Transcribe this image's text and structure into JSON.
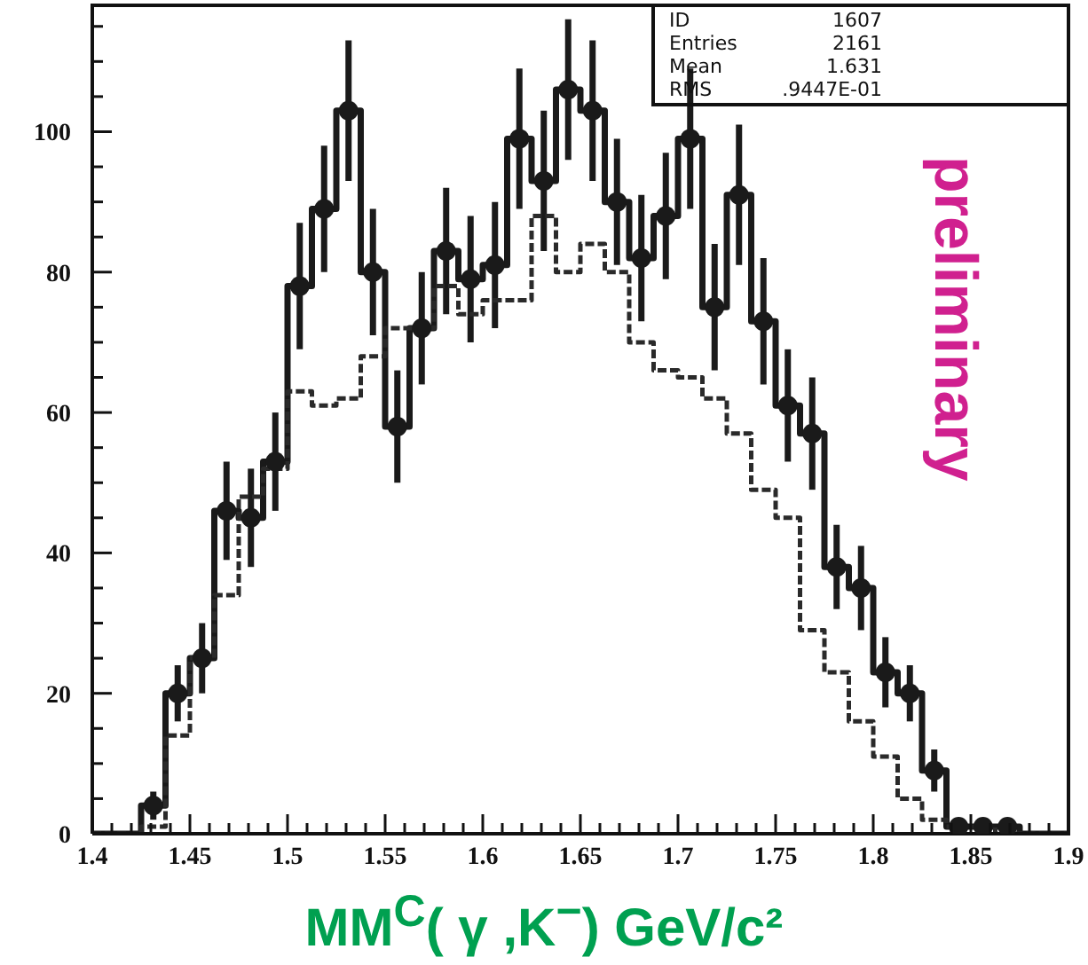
{
  "chart_data": {
    "type": "histogram",
    "bins": [
      1.4,
      1.4125,
      1.425,
      1.4375,
      1.45,
      1.4625,
      1.475,
      1.4875,
      1.5,
      1.5125,
      1.525,
      1.5375,
      1.55,
      1.5625,
      1.575,
      1.5875,
      1.6,
      1.6125,
      1.625,
      1.6375,
      1.65,
      1.6625,
      1.675,
      1.6875,
      1.7,
      1.7125,
      1.725,
      1.7375,
      1.75,
      1.7625,
      1.775,
      1.7875,
      1.8,
      1.8125,
      1.825,
      1.8375,
      1.85,
      1.8625,
      1.875,
      1.8875,
      1.9
    ],
    "series": [
      {
        "color": "#1a1a1a",
        "line_style": "solid",
        "values": [
          0,
          0,
          4,
          20,
          25,
          46,
          45,
          53,
          78,
          89,
          103,
          80,
          58,
          72,
          83,
          79,
          81,
          99,
          93,
          106,
          103,
          90,
          82,
          88,
          99,
          75,
          91,
          73,
          61,
          57,
          38,
          35,
          23,
          20,
          9,
          1,
          1,
          1,
          0,
          0
        ]
      },
      {
        "type": "scatter",
        "color": "#1a1a1a",
        "marker": "circle",
        "x": [
          1.43125,
          1.44375,
          1.45625,
          1.46875,
          1.48125,
          1.49375,
          1.50625,
          1.51875,
          1.53125,
          1.54375,
          1.55625,
          1.56875,
          1.58125,
          1.59375,
          1.60625,
          1.61875,
          1.63125,
          1.64375,
          1.65625,
          1.66875,
          1.68125,
          1.69375,
          1.70625,
          1.71875,
          1.73125,
          1.74375,
          1.75625,
          1.76875,
          1.78125,
          1.79375,
          1.80625,
          1.81875,
          1.83125,
          1.84375,
          1.85625,
          1.86875
        ],
        "values": [
          4,
          20,
          25,
          46,
          45,
          53,
          78,
          89,
          103,
          80,
          58,
          72,
          83,
          79,
          81,
          99,
          93,
          106,
          103,
          90,
          82,
          88,
          99,
          75,
          91,
          73,
          61,
          57,
          38,
          35,
          23,
          20,
          9,
          1,
          1,
          1
        ],
        "errors": [
          2,
          4,
          5,
          7,
          7,
          7,
          9,
          9,
          10,
          9,
          8,
          8,
          9,
          9,
          9,
          10,
          10,
          10,
          10,
          9,
          9,
          9,
          10,
          9,
          10,
          9,
          8,
          8,
          6,
          6,
          5,
          4,
          3,
          1,
          1,
          1
        ]
      },
      {
        "color": "#2a2a2a",
        "line_style": "dashed",
        "values": [
          0,
          0,
          1,
          14,
          25,
          34,
          48,
          52,
          63,
          61,
          62,
          68,
          72,
          72,
          78,
          74,
          76,
          76,
          88,
          80,
          84,
          80,
          70,
          66,
          65,
          62,
          57,
          49,
          45,
          29,
          23,
          16,
          11,
          5,
          2,
          1,
          1,
          0,
          0,
          0
        ]
      }
    ],
    "xlim": [
      1.4,
      1.9
    ],
    "ylim": [
      0,
      118
    ],
    "xticks": [
      1.4,
      {
        "value": 1.41,
        "label": null
      },
      {
        "value": 1.42,
        "label": null
      },
      {
        "value": 1.43,
        "label": null
      },
      {
        "value": 1.44,
        "label": null
      },
      1.45,
      {
        "value": 1.46,
        "label": null
      },
      {
        "value": 1.47,
        "label": null
      },
      {
        "value": 1.48,
        "label": null
      },
      {
        "value": 1.49,
        "label": null
      },
      1.5,
      {
        "value": 1.51,
        "label": null
      },
      {
        "value": 1.52,
        "label": null
      },
      {
        "value": 1.53,
        "label": null
      },
      {
        "value": 1.54,
        "label": null
      },
      1.55,
      {
        "value": 1.56,
        "label": null
      },
      {
        "value": 1.57,
        "label": null
      },
      {
        "value": 1.58,
        "label": null
      },
      {
        "value": 1.59,
        "label": null
      },
      1.6,
      {
        "value": 1.61,
        "label": null
      },
      {
        "value": 1.62,
        "label": null
      },
      {
        "value": 1.63,
        "label": null
      },
      {
        "value": 1.64,
        "label": null
      },
      1.65,
      {
        "value": 1.66,
        "label": null
      },
      {
        "value": 1.67,
        "label": null
      },
      {
        "value": 1.68,
        "label": null
      },
      {
        "value": 1.69,
        "label": null
      },
      1.7,
      {
        "value": 1.71,
        "label": null
      },
      {
        "value": 1.72,
        "label": null
      },
      {
        "value": 1.73,
        "label": null
      },
      {
        "value": 1.74,
        "label": null
      },
      1.75,
      {
        "value": 1.76,
        "label": null
      },
      {
        "value": 1.77,
        "label": null
      },
      {
        "value": 1.78,
        "label": null
      },
      {
        "value": 1.79,
        "label": null
      },
      1.8,
      {
        "value": 1.81,
        "label": null
      },
      {
        "value": 1.82,
        "label": null
      },
      {
        "value": 1.83,
        "label": null
      },
      {
        "value": 1.84,
        "label": null
      },
      1.85,
      {
        "value": 1.86,
        "label": null
      },
      {
        "value": 1.87,
        "label": null
      },
      {
        "value": 1.88,
        "label": null
      },
      {
        "value": 1.89,
        "label": null
      },
      1.9
    ],
    "yticks": [
      0,
      {
        "value": 5,
        "label": null
      },
      {
        "value": 10,
        "label": null
      },
      {
        "value": 15,
        "label": null
      },
      20,
      {
        "value": 25,
        "label": null
      },
      {
        "value": 30,
        "label": null
      },
      {
        "value": 35,
        "label": null
      },
      40,
      {
        "value": 45,
        "label": null
      },
      {
        "value": 50,
        "label": null
      },
      {
        "value": 55,
        "label": null
      },
      60,
      {
        "value": 65,
        "label": null
      },
      {
        "value": 70,
        "label": null
      },
      {
        "value": 75,
        "label": null
      },
      80,
      {
        "value": 85,
        "label": null
      },
      {
        "value": 90,
        "label": null
      },
      {
        "value": 95,
        "label": null
      },
      100,
      {
        "value": 105,
        "label": null
      },
      {
        "value": 110,
        "label": null
      },
      {
        "value": 115,
        "label": null
      }
    ],
    "xlabel": "MM$^{C}$( γ ,K$^{−}$) GeV/c²",
    "annotations": [
      "ID",
      "1607",
      "Entries",
      "2161",
      "Mean",
      "1.631",
      "RMS",
      ".9447E-01",
      "preliminary"
    ]
  }
}
